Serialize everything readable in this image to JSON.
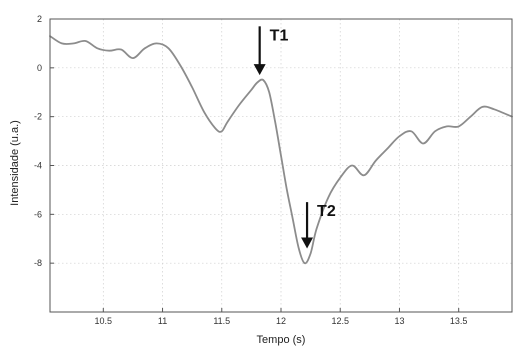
{
  "chart_data": {
    "type": "line",
    "title": "",
    "xlabel": "Tempo (s)",
    "ylabel": "Intensidade (u.a.)",
    "xlim": [
      10.05,
      13.95
    ],
    "ylim": [
      -10,
      2
    ],
    "grid": true,
    "x_ticks": [
      10.5,
      11,
      11.5,
      12,
      12.5,
      13,
      13.5
    ],
    "x_tick_labels": [
      "10.5",
      "11",
      "11.5",
      "12",
      "12.5",
      "13",
      "13.5"
    ],
    "y_ticks": [
      2,
      0,
      -2,
      -4,
      -6,
      -8
    ],
    "y_tick_labels": [
      "2",
      "0",
      "-2",
      "-4",
      "-6",
      "-8"
    ],
    "line_color": "#8c8c8c",
    "series": [
      {
        "x": [
          10.05,
          10.15,
          10.25,
          10.35,
          10.45,
          10.55,
          10.65,
          10.75,
          10.85,
          10.95,
          11.05,
          11.15,
          11.25,
          11.35,
          11.45,
          11.5,
          11.55,
          11.65,
          11.75,
          11.8,
          11.85,
          11.9,
          11.95,
          12.0,
          12.05,
          12.1,
          12.15,
          12.2,
          12.25,
          12.3,
          12.4,
          12.5,
          12.6,
          12.7,
          12.8,
          12.9,
          13.0,
          13.1,
          13.2,
          13.3,
          13.4,
          13.5,
          13.6,
          13.7,
          13.8,
          13.95
        ],
        "y": [
          1.3,
          1.0,
          1.0,
          1.1,
          0.8,
          0.7,
          0.75,
          0.4,
          0.8,
          1.0,
          0.8,
          0.1,
          -0.8,
          -1.8,
          -2.5,
          -2.6,
          -2.2,
          -1.5,
          -0.9,
          -0.6,
          -0.5,
          -1.0,
          -2.2,
          -3.6,
          -5.0,
          -6.2,
          -7.4,
          -8.0,
          -7.6,
          -6.6,
          -5.3,
          -4.5,
          -4.0,
          -4.4,
          -3.8,
          -3.3,
          -2.8,
          -2.6,
          -3.1,
          -2.6,
          -2.4,
          -2.4,
          -2.0,
          -1.6,
          -1.7,
          -2.0
        ]
      }
    ],
    "annotations": [
      {
        "text": "T1",
        "x": 11.82,
        "y_from": 1.7,
        "y_to": -0.3
      },
      {
        "text": "T2",
        "x": 12.22,
        "y_from": -5.5,
        "y_to": -7.4
      }
    ]
  }
}
